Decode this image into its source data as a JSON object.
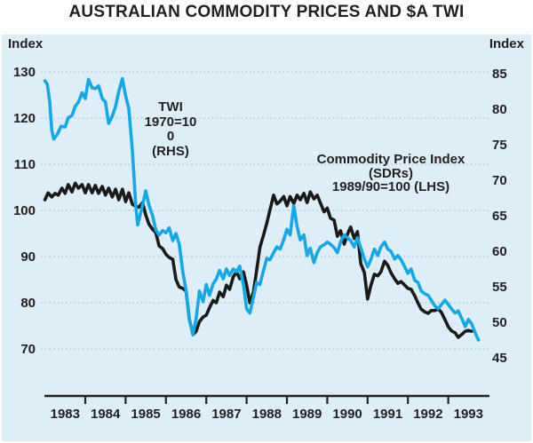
{
  "title": "AUSTRALIAN COMMODITY PRICES AND $A TWI",
  "panel": {
    "background_color": "#ddeef8",
    "grid_color": "#a3b2bc",
    "axis_color": "#231f20",
    "text_color": "#231f20"
  },
  "axes": {
    "left_title": "Index",
    "right_title": "Index"
  },
  "annotations": {
    "twi": {
      "lines": [
        "TWI",
        "1970=10",
        "0",
        "(RHS)"
      ]
    },
    "cpi": {
      "lines": [
        "Commodity Price Index",
        "(SDRs)",
        "1989/90=100 (LHS)"
      ]
    }
  },
  "chart_data": {
    "type": "line",
    "title": "AUSTRALIAN COMMODITY PRICES AND $A TWI",
    "grid": "dotted horizontal at left-axis ticks",
    "legend_position": "inline text annotations",
    "x_axis": {
      "labels": [
        "1983",
        "1984",
        "1985",
        "1986",
        "1987",
        "1988",
        "1989",
        "1990",
        "1991",
        "1992",
        "1993"
      ],
      "tick_years": [
        1984,
        1985,
        1986,
        1987,
        1988,
        1989,
        1990,
        1991,
        1992,
        1993
      ],
      "range": [
        1982.99,
        1994.02
      ]
    },
    "left_axis": {
      "label": "Index",
      "ticks": [
        130,
        120,
        110,
        100,
        90,
        80,
        70
      ],
      "range": [
        59.8,
        138.1
      ]
    },
    "right_axis": {
      "label": "Index",
      "ticks": [
        85,
        80,
        75,
        70,
        65,
        60,
        55,
        50,
        45
      ],
      "range": [
        39.6,
        90.5
      ]
    },
    "series": [
      {
        "name": "Commodity Price Index (SDRs) 1989/90=100",
        "axis": "left",
        "color": "#1a1a1a",
        "points": [
          [
            1983.0,
            102.3
          ],
          [
            1983.08,
            103.8
          ],
          [
            1983.17,
            102.9
          ],
          [
            1983.25,
            103.7
          ],
          [
            1983.33,
            103.3
          ],
          [
            1983.42,
            104.8
          ],
          [
            1983.5,
            103.7
          ],
          [
            1983.58,
            105.6
          ],
          [
            1983.67,
            104.0
          ],
          [
            1983.75,
            105.9
          ],
          [
            1983.83,
            104.8
          ],
          [
            1983.92,
            105.6
          ],
          [
            1984.0,
            103.8
          ],
          [
            1984.08,
            105.6
          ],
          [
            1984.17,
            103.8
          ],
          [
            1984.25,
            105.4
          ],
          [
            1984.33,
            103.7
          ],
          [
            1984.42,
            105.2
          ],
          [
            1984.5,
            103.3
          ],
          [
            1984.58,
            104.8
          ],
          [
            1984.67,
            102.9
          ],
          [
            1984.75,
            104.6
          ],
          [
            1984.83,
            102.3
          ],
          [
            1984.92,
            104.6
          ],
          [
            1985.0,
            101.9
          ],
          [
            1985.08,
            103.8
          ],
          [
            1985.17,
            101.3
          ],
          [
            1985.25,
            100.9
          ],
          [
            1985.33,
            100.7
          ],
          [
            1985.42,
            101.7
          ],
          [
            1985.5,
            99.0
          ],
          [
            1985.58,
            97.0
          ],
          [
            1985.67,
            95.9
          ],
          [
            1985.75,
            95.2
          ],
          [
            1985.83,
            92.3
          ],
          [
            1985.92,
            91.7
          ],
          [
            1986.0,
            90.5
          ],
          [
            1986.08,
            89.8
          ],
          [
            1986.17,
            89.4
          ],
          [
            1986.25,
            85.0
          ],
          [
            1986.33,
            83.4
          ],
          [
            1986.42,
            83.1
          ],
          [
            1986.5,
            82.5
          ],
          [
            1986.58,
            76.5
          ],
          [
            1986.67,
            73.1
          ],
          [
            1986.75,
            73.8
          ],
          [
            1986.83,
            75.9
          ],
          [
            1986.92,
            76.9
          ],
          [
            1987.0,
            77.3
          ],
          [
            1987.08,
            78.9
          ],
          [
            1987.17,
            80.5
          ],
          [
            1987.25,
            80.0
          ],
          [
            1987.33,
            82.3
          ],
          [
            1987.42,
            81.3
          ],
          [
            1987.5,
            83.8
          ],
          [
            1987.58,
            82.9
          ],
          [
            1987.67,
            85.6
          ],
          [
            1987.75,
            86.7
          ],
          [
            1987.83,
            85.2
          ],
          [
            1987.92,
            86.7
          ],
          [
            1988.0,
            83.8
          ],
          [
            1988.08,
            80.0
          ],
          [
            1988.17,
            82.3
          ],
          [
            1988.25,
            87.0
          ],
          [
            1988.33,
            92.0
          ],
          [
            1988.42,
            94.7
          ],
          [
            1988.5,
            97.2
          ],
          [
            1988.58,
            100.1
          ],
          [
            1988.67,
            103.3
          ],
          [
            1988.75,
            101.4
          ],
          [
            1988.83,
            102.0
          ],
          [
            1988.92,
            103.0
          ],
          [
            1989.0,
            101.0
          ],
          [
            1989.08,
            103.0
          ],
          [
            1989.17,
            101.5
          ],
          [
            1989.25,
            103.3
          ],
          [
            1989.33,
            102.3
          ],
          [
            1989.42,
            103.7
          ],
          [
            1989.5,
            101.7
          ],
          [
            1989.58,
            104.0
          ],
          [
            1989.67,
            102.5
          ],
          [
            1989.75,
            103.3
          ],
          [
            1989.83,
            101.6
          ],
          [
            1989.92,
            99.7
          ],
          [
            1990.0,
            100.5
          ],
          [
            1990.08,
            98.3
          ],
          [
            1990.17,
            97.9
          ],
          [
            1990.25,
            94.4
          ],
          [
            1990.33,
            95.6
          ],
          [
            1990.42,
            92.7
          ],
          [
            1990.5,
            94.8
          ],
          [
            1990.58,
            96.4
          ],
          [
            1990.67,
            93.9
          ],
          [
            1990.75,
            95.4
          ],
          [
            1990.83,
            88.5
          ],
          [
            1990.92,
            86.5
          ],
          [
            1991.0,
            80.8
          ],
          [
            1991.08,
            83.7
          ],
          [
            1991.17,
            86.2
          ],
          [
            1991.25,
            85.8
          ],
          [
            1991.33,
            86.7
          ],
          [
            1991.42,
            89.0
          ],
          [
            1991.5,
            88.1
          ],
          [
            1991.58,
            86.5
          ],
          [
            1991.67,
            85.2
          ],
          [
            1991.75,
            84.2
          ],
          [
            1991.83,
            84.6
          ],
          [
            1991.92,
            83.8
          ],
          [
            1992.0,
            83.1
          ],
          [
            1992.08,
            82.9
          ],
          [
            1992.17,
            81.5
          ],
          [
            1992.25,
            79.9
          ],
          [
            1992.33,
            78.6
          ],
          [
            1992.42,
            78.0
          ],
          [
            1992.5,
            77.7
          ],
          [
            1992.58,
            78.3
          ],
          [
            1992.67,
            78.3
          ],
          [
            1992.75,
            78.7
          ],
          [
            1992.83,
            77.9
          ],
          [
            1992.92,
            76.3
          ],
          [
            1993.0,
            74.8
          ],
          [
            1993.08,
            73.9
          ],
          [
            1993.17,
            73.5
          ],
          [
            1993.25,
            72.5
          ],
          [
            1993.33,
            73.1
          ],
          [
            1993.42,
            73.8
          ],
          [
            1993.5,
            74.0
          ],
          [
            1993.58,
            73.8
          ]
        ]
      },
      {
        "name": "TWI 1970=100",
        "axis": "right",
        "color": "#1aa7e0",
        "points": [
          [
            1983.0,
            84.0
          ],
          [
            1983.06,
            83.5
          ],
          [
            1983.12,
            81.0
          ],
          [
            1983.17,
            77.0
          ],
          [
            1983.22,
            75.8
          ],
          [
            1983.3,
            76.4
          ],
          [
            1983.4,
            77.6
          ],
          [
            1983.5,
            77.5
          ],
          [
            1983.58,
            78.8
          ],
          [
            1983.67,
            79.1
          ],
          [
            1983.75,
            80.4
          ],
          [
            1983.83,
            81.0
          ],
          [
            1983.92,
            82.3
          ],
          [
            1984.0,
            81.5
          ],
          [
            1984.08,
            84.2
          ],
          [
            1984.17,
            83.0
          ],
          [
            1984.25,
            82.9
          ],
          [
            1984.33,
            83.3
          ],
          [
            1984.42,
            81.5
          ],
          [
            1984.5,
            81.0
          ],
          [
            1984.58,
            78.0
          ],
          [
            1984.67,
            79.0
          ],
          [
            1984.75,
            80.4
          ],
          [
            1984.83,
            82.5
          ],
          [
            1984.92,
            84.3
          ],
          [
            1985.0,
            81.9
          ],
          [
            1985.08,
            80.1
          ],
          [
            1985.17,
            74.0
          ],
          [
            1985.25,
            66.5
          ],
          [
            1985.3,
            63.7
          ],
          [
            1985.4,
            66.0
          ],
          [
            1985.5,
            68.5
          ],
          [
            1985.58,
            66.5
          ],
          [
            1985.67,
            65.0
          ],
          [
            1985.75,
            63.0
          ],
          [
            1985.83,
            62.3
          ],
          [
            1985.92,
            62.9
          ],
          [
            1986.0,
            62.6
          ],
          [
            1986.08,
            63.3
          ],
          [
            1986.17,
            61.5
          ],
          [
            1986.25,
            62.5
          ],
          [
            1986.33,
            61.0
          ],
          [
            1986.42,
            57.0
          ],
          [
            1986.5,
            54.5
          ],
          [
            1986.58,
            50.5
          ],
          [
            1986.67,
            48.3
          ],
          [
            1986.75,
            50.5
          ],
          [
            1986.83,
            54.4
          ],
          [
            1986.92,
            52.9
          ],
          [
            1987.0,
            55.3
          ],
          [
            1987.08,
            53.8
          ],
          [
            1987.17,
            55.4
          ],
          [
            1987.25,
            56.1
          ],
          [
            1987.33,
            57.3
          ],
          [
            1987.42,
            56.1
          ],
          [
            1987.5,
            57.5
          ],
          [
            1987.58,
            56.6
          ],
          [
            1987.67,
            57.5
          ],
          [
            1987.75,
            57.1
          ],
          [
            1987.83,
            57.9
          ],
          [
            1987.92,
            55.3
          ],
          [
            1988.0,
            51.9
          ],
          [
            1988.08,
            51.3
          ],
          [
            1988.17,
            53.5
          ],
          [
            1988.25,
            55.6
          ],
          [
            1988.33,
            55.3
          ],
          [
            1988.42,
            57.3
          ],
          [
            1988.5,
            59.0
          ],
          [
            1988.58,
            58.8
          ],
          [
            1988.67,
            59.8
          ],
          [
            1988.75,
            60.6
          ],
          [
            1988.83,
            60.3
          ],
          [
            1988.92,
            61.6
          ],
          [
            1989.0,
            63.1
          ],
          [
            1989.08,
            62.3
          ],
          [
            1989.17,
            66.4
          ],
          [
            1989.25,
            63.5
          ],
          [
            1989.33,
            61.6
          ],
          [
            1989.42,
            62.3
          ],
          [
            1989.5,
            59.4
          ],
          [
            1989.58,
            60.4
          ],
          [
            1989.67,
            58.4
          ],
          [
            1989.75,
            59.8
          ],
          [
            1989.83,
            60.6
          ],
          [
            1989.92,
            60.9
          ],
          [
            1990.0,
            61.3
          ],
          [
            1990.08,
            61.0
          ],
          [
            1990.17,
            60.5
          ],
          [
            1990.25,
            59.8
          ],
          [
            1990.33,
            61.3
          ],
          [
            1990.42,
            62.3
          ],
          [
            1990.5,
            61.9
          ],
          [
            1990.58,
            61.5
          ],
          [
            1990.67,
            60.6
          ],
          [
            1990.75,
            61.9
          ],
          [
            1990.83,
            60.5
          ],
          [
            1990.92,
            58.9
          ],
          [
            1991.0,
            57.8
          ],
          [
            1991.08,
            58.8
          ],
          [
            1991.17,
            60.3
          ],
          [
            1991.25,
            59.4
          ],
          [
            1991.33,
            60.6
          ],
          [
            1991.42,
            61.3
          ],
          [
            1991.5,
            60.3
          ],
          [
            1991.58,
            60.0
          ],
          [
            1991.67,
            58.9
          ],
          [
            1991.75,
            59.4
          ],
          [
            1991.83,
            58.8
          ],
          [
            1991.92,
            57.8
          ],
          [
            1992.0,
            56.9
          ],
          [
            1992.08,
            57.5
          ],
          [
            1992.17,
            55.9
          ],
          [
            1992.25,
            55.6
          ],
          [
            1992.33,
            54.4
          ],
          [
            1992.42,
            54.0
          ],
          [
            1992.5,
            53.8
          ],
          [
            1992.58,
            53.1
          ],
          [
            1992.67,
            52.3
          ],
          [
            1992.75,
            51.9
          ],
          [
            1992.83,
            52.5
          ],
          [
            1992.92,
            53.1
          ],
          [
            1993.0,
            52.5
          ],
          [
            1993.08,
            51.9
          ],
          [
            1993.17,
            51.3
          ],
          [
            1993.25,
            51.6
          ],
          [
            1993.33,
            50.6
          ],
          [
            1993.42,
            49.4
          ],
          [
            1993.5,
            50.4
          ],
          [
            1993.58,
            49.8
          ],
          [
            1993.67,
            48.5
          ],
          [
            1993.75,
            47.5
          ]
        ]
      }
    ]
  }
}
